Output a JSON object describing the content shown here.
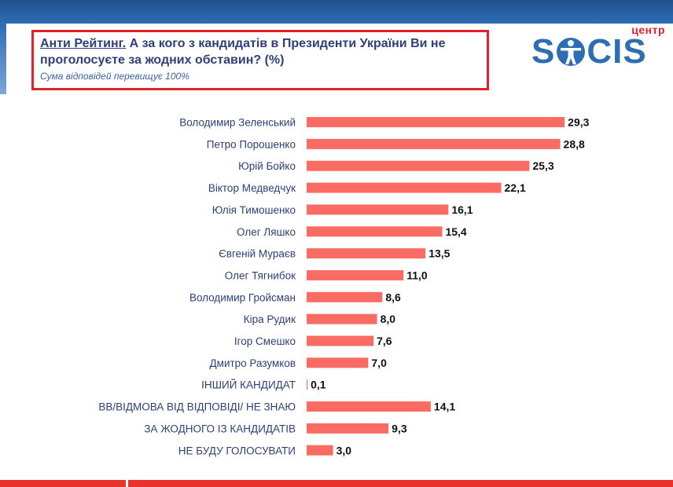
{
  "header": {
    "title_lead": "Анти Рейтинг.",
    "title_rest": " А за кого з кандидатів в Президенти України Ви не проголосуєте за жодних обставин? (%)",
    "subtitle": "Сума відповідей перевищує 100%"
  },
  "logo": {
    "small_text": "центр",
    "word_left": "S",
    "word_right": "CIS"
  },
  "colors": {
    "bar": "#fa6b63",
    "title_box_border": "#e3202b",
    "title_text": "#2e3f7a",
    "logo_blue": "#2d6db3",
    "logo_red": "#e3202b"
  },
  "chart_data": {
    "type": "bar",
    "orientation": "horizontal",
    "categories": [
      "Володимир Зеленський",
      "Петро Порошенко",
      "Юрій Бойко",
      "Віктор Медведчук",
      "Юлія Тимошенко",
      "Олег Ляшко",
      "Євгеній Мураєв",
      "Олег Тягнибок",
      "Володимир Гройсман",
      "Кіра Рудик",
      "Ігор Смешко",
      "Дмитро Разумков",
      "ІНШИЙ КАНДИДАТ",
      "ВВ/ВІДМОВА ВІД ВІДПОВІДІ/ НЕ ЗНАЮ",
      "ЗА ЖОДНОГО ІЗ КАНДИДАТІВ",
      "НЕ БУДУ ГОЛОСУВАТИ"
    ],
    "values": [
      29.3,
      28.8,
      25.3,
      22.1,
      16.1,
      15.4,
      13.5,
      11.0,
      8.6,
      8.0,
      7.6,
      7.0,
      0.1,
      14.1,
      9.3,
      3.0
    ],
    "value_labels": [
      "29,3",
      "28,8",
      "25,3",
      "22,1",
      "16,1",
      "15,4",
      "13,5",
      "11,0",
      "8,6",
      "8,0",
      "7,6",
      "7,0",
      "0,1",
      "14,1",
      "9,3",
      "3,0"
    ],
    "xlim": [
      0,
      30
    ],
    "grid": false,
    "legend": "none"
  }
}
